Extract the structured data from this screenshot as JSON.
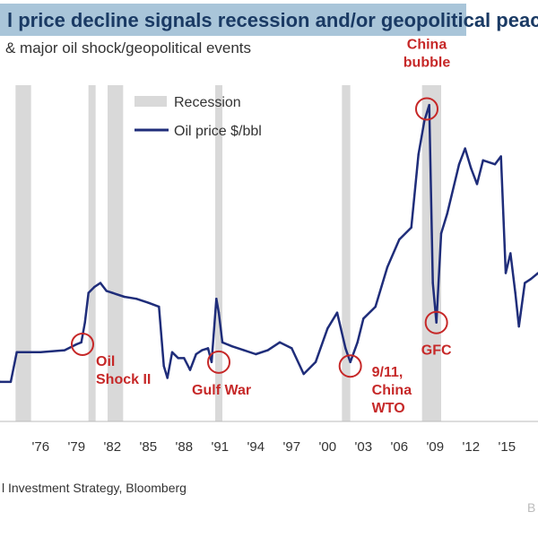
{
  "header": {
    "title": "l price decline signals recession and/or geopolitical peace",
    "subtitle": "& major oil shock/geopolitical events"
  },
  "footer": {
    "source": "l Investment Strategy, Bloomberg",
    "corner_mark": "B"
  },
  "chart_data": {
    "type": "line",
    "title": "",
    "xlabel": "",
    "ylabel": "",
    "xlim": [
      1972.6,
      2017.6
    ],
    "ylim": [
      0,
      170
    ],
    "x_ticks": [
      "'76",
      "'79",
      "'82",
      "'85",
      "'88",
      "'91",
      "'94",
      "'97",
      "'00",
      "'03",
      "'06",
      "'09",
      "'12",
      "'15"
    ],
    "legend": {
      "placement": "top-center",
      "items": [
        "Recession",
        "Oil price $/bbl"
      ]
    },
    "colors": {
      "line": "#1f2d7a",
      "recession": "#d9d9d9",
      "annotation": "#c62828"
    },
    "recessions": [
      [
        1973.9,
        1975.2
      ],
      [
        1980.0,
        1980.6
      ],
      [
        1981.6,
        1982.9
      ],
      [
        1990.6,
        1991.2
      ],
      [
        2001.2,
        2001.9
      ],
      [
        2007.9,
        2009.5
      ]
    ],
    "series": [
      {
        "name": "Oil price $/bbl",
        "points": [
          [
            1972.6,
            20
          ],
          [
            1973.5,
            20
          ],
          [
            1974.0,
            35
          ],
          [
            1976.0,
            35
          ],
          [
            1978.0,
            36
          ],
          [
            1979.0,
            39
          ],
          [
            1979.4,
            40
          ],
          [
            1979.7,
            50
          ],
          [
            1980.0,
            65
          ],
          [
            1980.5,
            68
          ],
          [
            1981.0,
            70
          ],
          [
            1981.5,
            66
          ],
          [
            1982.0,
            65
          ],
          [
            1983.0,
            63
          ],
          [
            1984.0,
            62
          ],
          [
            1985.0,
            60
          ],
          [
            1985.9,
            58
          ],
          [
            1986.3,
            28
          ],
          [
            1986.6,
            22
          ],
          [
            1987.0,
            35
          ],
          [
            1987.5,
            32
          ],
          [
            1988.0,
            32
          ],
          [
            1988.5,
            26
          ],
          [
            1989.0,
            34
          ],
          [
            1989.5,
            36
          ],
          [
            1990.0,
            37
          ],
          [
            1990.3,
            30
          ],
          [
            1990.7,
            62
          ],
          [
            1990.9,
            55
          ],
          [
            1991.2,
            40
          ],
          [
            1992.0,
            38
          ],
          [
            1993.0,
            36
          ],
          [
            1994.0,
            34
          ],
          [
            1995.0,
            36
          ],
          [
            1996.0,
            40
          ],
          [
            1997.0,
            37
          ],
          [
            1998.0,
            24
          ],
          [
            1999.0,
            30
          ],
          [
            2000.0,
            47
          ],
          [
            2000.8,
            55
          ],
          [
            2001.5,
            37
          ],
          [
            2001.9,
            30
          ],
          [
            2002.5,
            40
          ],
          [
            2003.0,
            52
          ],
          [
            2004.0,
            58
          ],
          [
            2005.0,
            78
          ],
          [
            2006.0,
            92
          ],
          [
            2007.0,
            98
          ],
          [
            2007.6,
            135
          ],
          [
            2008.1,
            152
          ],
          [
            2008.5,
            160
          ],
          [
            2008.8,
            70
          ],
          [
            2009.1,
            50
          ],
          [
            2009.5,
            95
          ],
          [
            2010.0,
            105
          ],
          [
            2011.0,
            130
          ],
          [
            2011.5,
            138
          ],
          [
            2012.0,
            128
          ],
          [
            2012.5,
            120
          ],
          [
            2013.0,
            132
          ],
          [
            2014.0,
            130
          ],
          [
            2014.5,
            134
          ],
          [
            2014.9,
            75
          ],
          [
            2015.3,
            85
          ],
          [
            2015.7,
            65
          ],
          [
            2016.0,
            48
          ],
          [
            2016.5,
            70
          ],
          [
            2017.0,
            72
          ],
          [
            2017.6,
            75
          ]
        ]
      }
    ],
    "annotations": [
      {
        "text": "Oil Shock II",
        "lines": [
          "Oil",
          "Shock II"
        ],
        "x": 1979.5,
        "y": 39
      },
      {
        "text": "Gulf War",
        "lines": [
          "Gulf War"
        ],
        "x": 1990.9,
        "y": 30
      },
      {
        "text": "9/11, China WTO",
        "lines": [
          "9/11,",
          "China",
          "WTO"
        ],
        "x": 2001.9,
        "y": 28
      },
      {
        "text": "GFC",
        "lines": [
          "GFC"
        ],
        "x": 2009.1,
        "y": 50
      },
      {
        "text": "China bubble",
        "lines": [
          "China",
          "bubble"
        ],
        "x": 2008.3,
        "y": 158
      }
    ]
  }
}
